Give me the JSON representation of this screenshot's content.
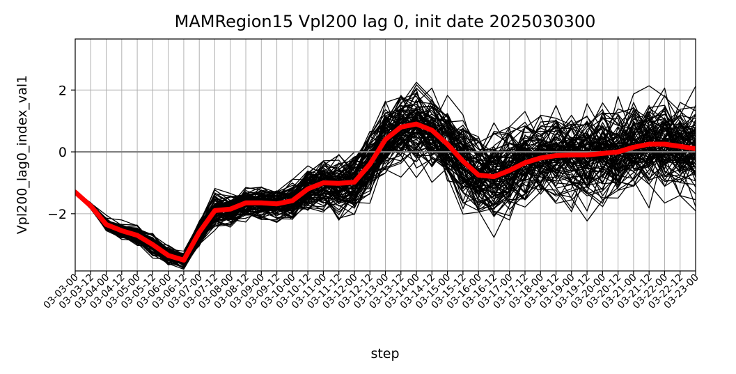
{
  "chart_data": {
    "type": "line",
    "title": "MAMRegion15 Vpl200 lag 0, init date 2025030300",
    "xlabel": "step",
    "ylabel": "Vpl200_lag0_index_val1",
    "x": [
      "03-03-00",
      "03-03-12",
      "03-04-00",
      "03-04-12",
      "03-05-00",
      "03-05-12",
      "03-06-00",
      "03-06-12",
      "03-07-00",
      "03-07-12",
      "03-08-00",
      "03-08-12",
      "03-09-00",
      "03-09-12",
      "03-10-00",
      "03-10-12",
      "03-11-00",
      "03-11-12",
      "03-12-00",
      "03-12-12",
      "03-13-00",
      "03-13-12",
      "03-14-00",
      "03-14-12",
      "03-15-00",
      "03-15-12",
      "03-16-00",
      "03-16-12",
      "03-17-00",
      "03-17-12",
      "03-18-00",
      "03-18-12",
      "03-19-00",
      "03-19-12",
      "03-20-00",
      "03-20-12",
      "03-21-00",
      "03-21-12",
      "03-22-00",
      "03-22-12",
      "03-23-00"
    ],
    "ylim": [
      -3.85,
      3.65
    ],
    "yticks": [
      -2,
      0,
      2
    ],
    "ytick_labels": [
      "−2",
      "0",
      "2"
    ],
    "grid": true,
    "reference_line": {
      "y": 0,
      "color": "#808080"
    },
    "ensemble": {
      "count": 100,
      "color": "#000000"
    },
    "ensemble_mean": {
      "color": "#ff0000",
      "values": [
        -1.3,
        -1.75,
        -2.35,
        -2.55,
        -2.7,
        -3.0,
        -3.35,
        -3.5,
        -2.6,
        -1.9,
        -1.85,
        -1.65,
        -1.65,
        -1.68,
        -1.58,
        -1.2,
        -1.0,
        -1.02,
        -0.98,
        -0.4,
        0.4,
        0.8,
        0.9,
        0.7,
        0.25,
        -0.3,
        -0.75,
        -0.8,
        -0.6,
        -0.35,
        -0.2,
        -0.12,
        -0.1,
        -0.1,
        -0.05,
        0.0,
        0.15,
        0.25,
        0.25,
        0.18,
        0.1
      ]
    },
    "spread": [
      0.05,
      0.1,
      0.2,
      0.25,
      0.3,
      0.35,
      0.3,
      0.3,
      0.4,
      0.5,
      0.5,
      0.5,
      0.5,
      0.5,
      0.6,
      0.7,
      0.8,
      1.0,
      1.1,
      1.2,
      1.2,
      1.2,
      1.2,
      1.2,
      1.3,
      1.4,
      1.4,
      1.4,
      1.4,
      1.4,
      1.4,
      1.4,
      1.4,
      1.5,
      1.5,
      1.5,
      1.5,
      1.5,
      1.5,
      1.5,
      1.5
    ]
  }
}
